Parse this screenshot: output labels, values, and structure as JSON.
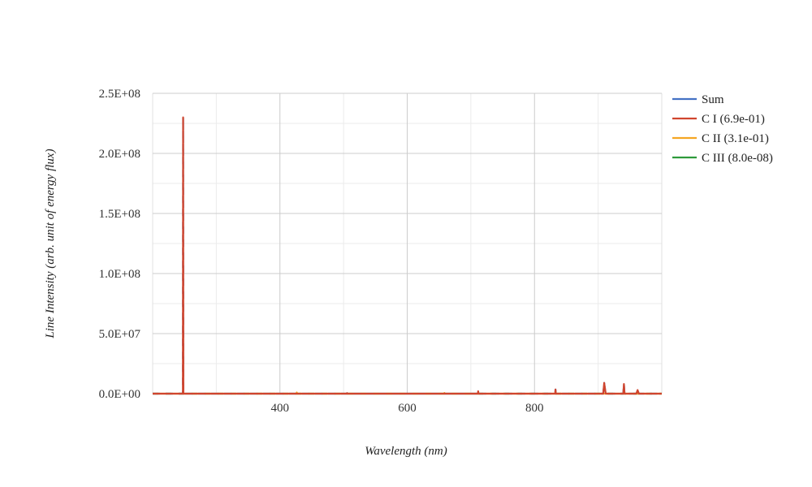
{
  "chart_data": {
    "type": "line",
    "title": "",
    "xlabel": "Wavelength (nm)",
    "ylabel": "Line Intensity (arb. unit of energy flux)",
    "xlim": [
      200,
      1000
    ],
    "ylim": [
      0,
      250000000
    ],
    "x_ticks": [
      400,
      600,
      800
    ],
    "x_tick_labels": [
      "400",
      "600",
      "800"
    ],
    "y_ticks": [
      0,
      50000000,
      100000000,
      150000000,
      200000000,
      250000000
    ],
    "y_tick_labels": [
      "0.0E+00",
      "5.0E+07",
      "1.0E+08",
      "1.5E+08",
      "2.0E+08",
      "2.5E+08"
    ],
    "grid": true,
    "legend_position": "right",
    "series": [
      {
        "name": "Sum",
        "color": "#4472c4",
        "x": [
          200,
          247.5,
          247.9,
          248.3,
          426,
          505.2,
          505.5,
          505.8,
          711,
          711.5,
          712,
          832.5,
          833,
          833.5,
          908,
          909.5,
          910.5,
          912,
          939.5,
          940.5,
          941.5,
          960,
          962,
          964,
          1000
        ],
        "y": [
          0,
          0,
          230000000,
          0,
          0,
          0,
          400000,
          0,
          0,
          2000000,
          0,
          0,
          3500000,
          0,
          0,
          9000000,
          5000000,
          0,
          0,
          8000000,
          0,
          0,
          3000000,
          0,
          0
        ]
      },
      {
        "name": "C I (6.9e-01)",
        "color": "#d0452e",
        "x": [
          200,
          247.5,
          247.9,
          248.3,
          426,
          505.2,
          505.5,
          505.8,
          711,
          711.5,
          712,
          832.5,
          833,
          833.5,
          908,
          909.5,
          910.5,
          912,
          939.5,
          940.5,
          941.5,
          960,
          962,
          964,
          1000
        ],
        "y": [
          0,
          0,
          230000000,
          0,
          0,
          0,
          400000,
          0,
          0,
          2000000,
          0,
          0,
          3500000,
          0,
          0,
          9000000,
          5000000,
          0,
          0,
          8000000,
          0,
          0,
          3000000,
          0,
          0
        ]
      },
      {
        "name": "C II (3.1e-01)",
        "color": "#f5a623",
        "x": [
          200,
          426,
          426.5,
          427,
          658,
          658.5,
          659,
          1000
        ],
        "y": [
          0,
          0,
          1000000,
          0,
          0,
          600000,
          0,
          0
        ]
      },
      {
        "name": "C III (8.0e-08)",
        "color": "#2e9a3b",
        "x": [
          200,
          1000
        ],
        "y": [
          0,
          0
        ]
      }
    ]
  }
}
